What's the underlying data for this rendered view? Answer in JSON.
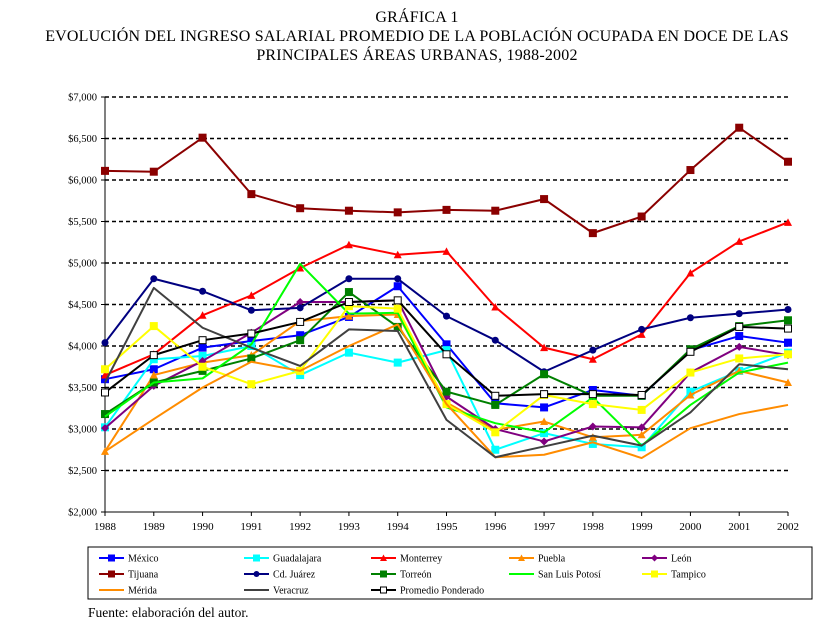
{
  "title": {
    "line1": "GRÁFICA 1",
    "line2": "EVOLUCIÓN DEL INGRESO SALARIAL PROMEDIO DE LA POBLACIÓN OCUPADA EN DOCE DE LAS",
    "line3": "PRINCIPALES ÁREAS URBANAS, 1988-2002"
  },
  "source_note": "Fuente: elaboración del autor.",
  "chart_data": {
    "type": "line",
    "title": "EVOLUCIÓN DEL INGRESO SALARIAL PROMEDIO DE LA POBLACIÓN OCUPADA EN DOCE DE LAS PRINCIPALES ÁREAS URBANAS, 1988-2002",
    "xlabel": "",
    "ylabel": "",
    "ylim": [
      2000,
      7000
    ],
    "y_ticks": [
      2000,
      2500,
      3000,
      3500,
      4000,
      4500,
      5000,
      5500,
      6000,
      6500,
      7000
    ],
    "y_tick_labels": [
      "$2,000",
      "$2,500",
      "$3,000",
      "$3,500",
      "$4,000",
      "$4,500",
      "$5,000",
      "$5,500",
      "$6,000",
      "$6,500",
      "$7,000"
    ],
    "grid": "horizontal dashed",
    "legend_position": "bottom",
    "categories": [
      "1988",
      "1989",
      "1990",
      "1991",
      "1992",
      "1993",
      "1994",
      "1995",
      "1996",
      "1997",
      "1998",
      "1999",
      "2000",
      "2001",
      "2002"
    ],
    "series": [
      {
        "name": "México",
        "color": "#0000ff",
        "marker": "square",
        "values": [
          3600,
          3720,
          3980,
          4060,
          4130,
          4350,
          4720,
          4020,
          3310,
          3260,
          3470,
          3400,
          3950,
          4120,
          4040
        ]
      },
      {
        "name": "Guadalajara",
        "color": "#00ffff",
        "marker": "square",
        "values": [
          3020,
          3840,
          3880,
          4000,
          3650,
          3920,
          3800,
          3950,
          2750,
          2950,
          2820,
          2780,
          3450,
          3700,
          3920
        ]
      },
      {
        "name": "Monterrey",
        "color": "#ff0000",
        "marker": "triangle",
        "values": [
          3650,
          3900,
          4370,
          4610,
          4940,
          5220,
          5100,
          5140,
          4470,
          3980,
          3840,
          4140,
          4880,
          5260,
          5490
        ]
      },
      {
        "name": "Puebla",
        "color": "#ff8c00",
        "marker": "triangle",
        "values": [
          2730,
          3650,
          3800,
          3890,
          4300,
          4360,
          4380,
          3320,
          2990,
          3090,
          2900,
          2930,
          3410,
          3700,
          3560
        ]
      },
      {
        "name": "León",
        "color": "#800080",
        "marker": "diamond",
        "values": [
          3010,
          3520,
          3820,
          4160,
          4530,
          4530,
          4550,
          3390,
          3000,
          2850,
          3030,
          3020,
          3680,
          3990,
          3890
        ]
      },
      {
        "name": "Tijuana",
        "color": "#8b0000",
        "marker": "square",
        "values": [
          6110,
          6100,
          6510,
          5830,
          5660,
          5630,
          5610,
          5640,
          5630,
          5770,
          5360,
          5560,
          6120,
          6630,
          6220
        ]
      },
      {
        "name": "Cd. Juárez",
        "color": "#000080",
        "marker": "circle",
        "values": [
          4040,
          4810,
          4660,
          4430,
          4460,
          4810,
          4810,
          4360,
          4070,
          3690,
          3950,
          4200,
          4340,
          4390,
          4440
        ]
      },
      {
        "name": "Torreón",
        "color": "#008000",
        "marker": "square",
        "values": [
          3180,
          3560,
          3700,
          3850,
          4070,
          4650,
          4230,
          3450,
          3290,
          3660,
          3400,
          3400,
          3960,
          4240,
          4310
        ]
      },
      {
        "name": "San Luis Potosí",
        "color": "#00ff00",
        "marker": "none",
        "values": [
          3150,
          3560,
          3610,
          4020,
          4990,
          4390,
          4400,
          3260,
          3070,
          2960,
          3380,
          2800,
          3290,
          3680,
          3800
        ]
      },
      {
        "name": "Tampico",
        "color": "#ffff00",
        "marker": "square",
        "values": [
          3720,
          4240,
          3750,
          3540,
          3700,
          4480,
          4450,
          3300,
          2960,
          3410,
          3300,
          3230,
          3680,
          3850,
          3900
        ]
      },
      {
        "name": "Mérida",
        "color": "#ff8c00",
        "marker": "none",
        "values": [
          2730,
          3120,
          3500,
          3810,
          3700,
          4000,
          4260,
          3300,
          2660,
          2690,
          2840,
          2650,
          3010,
          3180,
          3290
        ]
      },
      {
        "name": "Veracruz",
        "color": "#404040",
        "marker": "none",
        "values": [
          3560,
          4700,
          4220,
          3980,
          3760,
          4200,
          4180,
          3110,
          2660,
          2790,
          2920,
          2800,
          3200,
          3780,
          3720
        ]
      },
      {
        "name": "Promedio Ponderado",
        "color": "#000000",
        "marker": "open-square",
        "values": [
          3440,
          3890,
          4070,
          4150,
          4290,
          4530,
          4550,
          3900,
          3400,
          3420,
          3420,
          3410,
          3930,
          4230,
          4210
        ]
      }
    ]
  }
}
